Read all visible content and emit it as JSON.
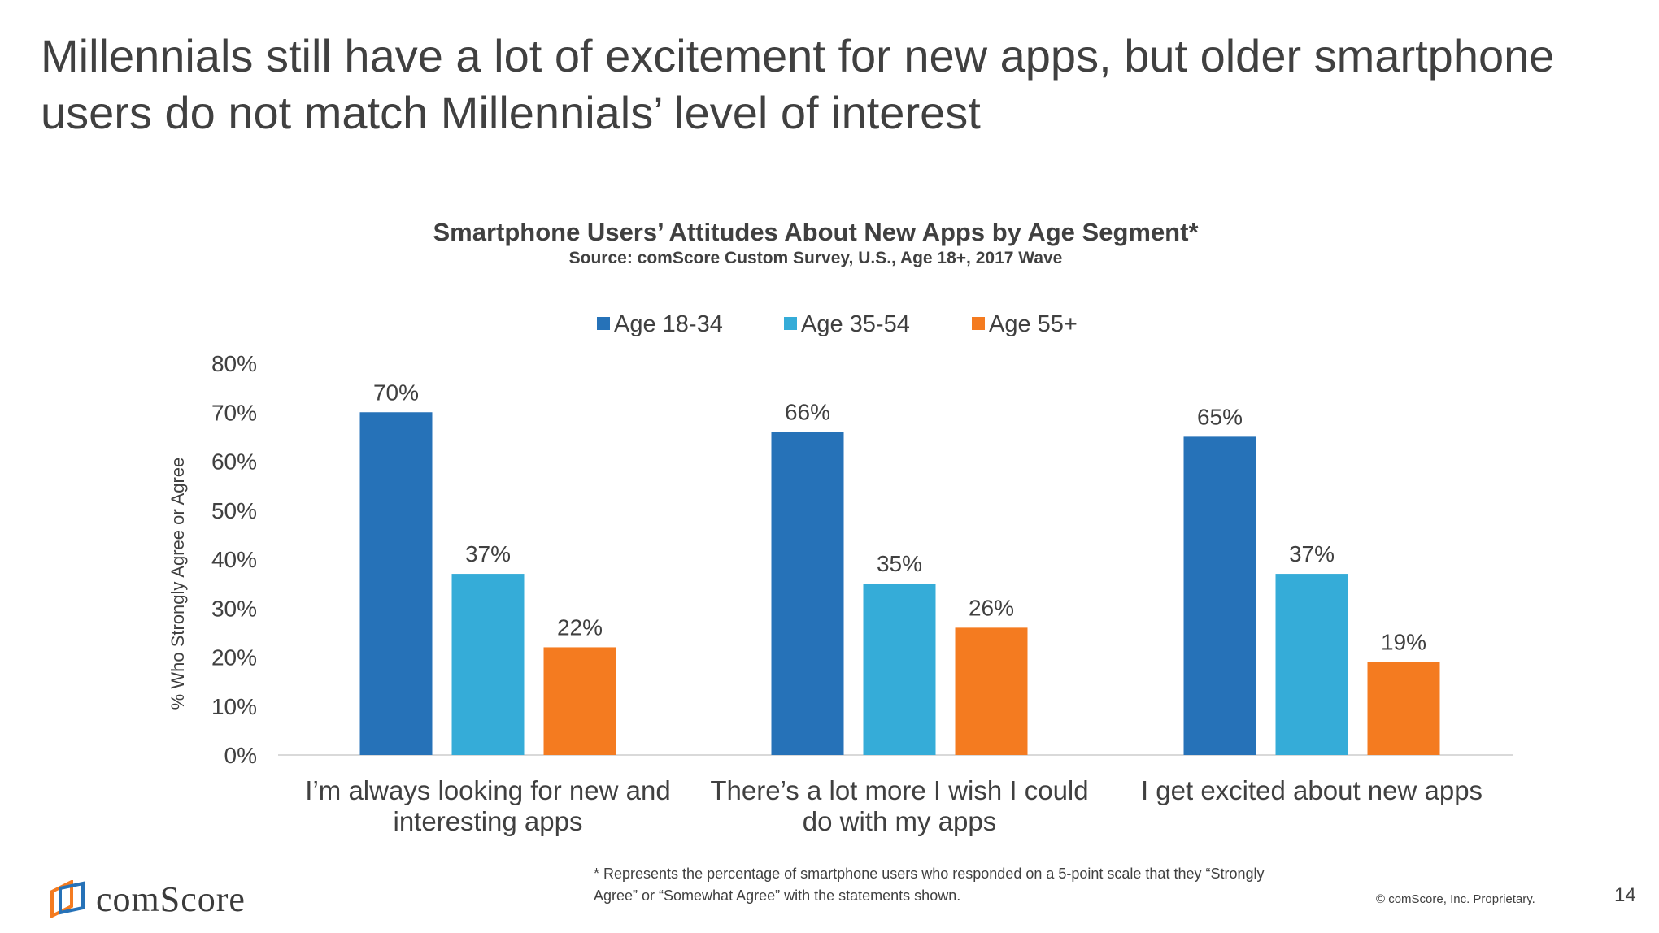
{
  "slide": {
    "title": "Millennials still have a lot of excitement for new apps, but older smartphone users do not match Millennials’ level of interest",
    "footnote_line1": "* Represents the percentage of smartphone users who responded on a 5-point scale that they “Strongly",
    "footnote_line2": "Agree” or “Somewhat Agree” with the statements shown.",
    "brand": "comScore",
    "copyright": "© comScore, Inc. Proprietary.",
    "page_number": "14"
  },
  "chart_data": {
    "type": "bar",
    "title": "Smartphone Users’ Attitudes About New Apps by Age Segment*",
    "subtitle": "Source: comScore Custom Survey, U.S., Age 18+, 2017 Wave",
    "ylabel": "% Who Strongly Agree or Agree",
    "xlabel": "",
    "ylim": [
      0,
      80
    ],
    "yticks": [
      "0%",
      "10%",
      "20%",
      "30%",
      "40%",
      "50%",
      "60%",
      "70%",
      "80%"
    ],
    "legend_position": "top-center",
    "grid": false,
    "categories": [
      [
        "I’m always looking for new and",
        "interesting apps"
      ],
      [
        "There’s a lot more I wish I could",
        "do with my apps"
      ],
      [
        "I get excited about new apps"
      ]
    ],
    "series": [
      {
        "name": "Age 18-34",
        "color": "#2672b8",
        "values": [
          70,
          66,
          65
        ],
        "labels": [
          "70%",
          "66%",
          "65%"
        ]
      },
      {
        "name": "Age 35-54",
        "color": "#35acd8",
        "values": [
          37,
          35,
          37
        ],
        "labels": [
          "37%",
          "35%",
          "37%"
        ]
      },
      {
        "name": "Age 55+",
        "color": "#f47b20",
        "values": [
          22,
          26,
          19
        ],
        "labels": [
          "22%",
          "26%",
          "19%"
        ]
      }
    ]
  }
}
